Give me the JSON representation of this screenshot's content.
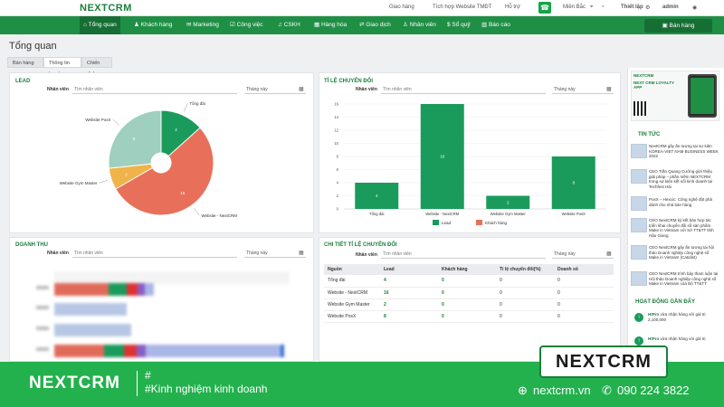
{
  "topbar": {
    "logo": "NEXTCRM",
    "links": [
      "Giao hàng",
      "Tích hợp Website TMĐT",
      "Hỗ trợ"
    ],
    "region": "Miền Bắc",
    "settings": "Thiết lập",
    "user": "admin"
  },
  "nav": {
    "items": [
      "Tổng quan",
      "Khách hàng",
      "Marketing",
      "Công việc",
      "CSKH",
      "Hàng hóa",
      "Giao dịch",
      "Nhân viên",
      "Sổ quỹ",
      "Báo cáo"
    ],
    "sell": "Bán hàng"
  },
  "page": {
    "title": "Tổng quan",
    "tabs": [
      "Bán hàng",
      "Thông tin Lead",
      "Chiến dịch"
    ]
  },
  "filters": {
    "staff_label": "Nhân viên",
    "staff_placeholder": "Tìm nhân viên",
    "period": "Tháng này"
  },
  "lead": {
    "title": "LEAD",
    "chart_data": {
      "type": "pie",
      "title": "LEAD",
      "labels": [
        "Tổng đài",
        "Website - NextCRM",
        "Website Gym Master",
        "Website PosX"
      ],
      "values": [
        4,
        16,
        2,
        8
      ],
      "slice_labels": [
        "4",
        "16",
        "2",
        "8"
      ],
      "colors": [
        "#1a9b5c",
        "#e8705a",
        "#f0b34a",
        "#9fcfbe"
      ]
    }
  },
  "conversion": {
    "title": "TỈ LỆ CHUYỂN ĐỔI",
    "chart_data": {
      "type": "bar",
      "title": "TỈ LỆ CHUYỂN ĐỔI",
      "categories": [
        "Tổng đài",
        "Website - NextCRM",
        "Website Gym Master",
        "Website PosX"
      ],
      "series": [
        {
          "name": "Lead",
          "values": [
            4,
            16,
            2,
            8
          ],
          "color": "#1a9b5c"
        },
        {
          "name": "Khách hàng",
          "values": [
            0,
            0,
            0,
            0
          ],
          "color": "#e8705a"
        }
      ],
      "ylim": [
        0,
        16
      ],
      "yticks": [
        "0",
        "2",
        "4",
        "6",
        "8",
        "10",
        "12",
        "14",
        "16"
      ],
      "bar_labels": [
        "4",
        "16",
        "2",
        "8"
      ]
    }
  },
  "revenue": {
    "title": "DOANH THU"
  },
  "detail": {
    "title": "CHI TIẾT TỈ LỆ CHUYỂN ĐỔI",
    "headers": [
      "Nguồn",
      "Lead",
      "Khách hàng",
      "Tỉ lệ chuyển đổi(%)",
      "Doanh số"
    ],
    "rows": [
      [
        "Tổng đài",
        "4",
        "0",
        "0",
        "0"
      ],
      [
        "Website - NextCRM",
        "16",
        "0",
        "0",
        "0"
      ],
      [
        "Website Gym Master",
        "2",
        "0",
        "0",
        "0"
      ],
      [
        "Website PosX",
        "8",
        "0",
        "0",
        "0"
      ]
    ]
  },
  "right": {
    "ad_brand": "NEXTCRM",
    "ad_title": "NEXT CRM LOYALTY APP",
    "news_title": "TIN TỨC",
    "news": [
      "NextCRM gây ấn tượng tại sự kiện KOREA-VIET NAM BUSINESS WEEK 2022",
      "CEO Trần Quang Cường giới thiệu giải pháp – phần mềm NEXTCRM trong sự kiện kết nối kinh doanh tại Techfest Hải",
      "PosX – Hexcic: Công nghệ đột phá dành cho nhà bán hàng",
      "CEO NextCRM ký kết bản hợp tác triển khai chuyển đổi số sản phẩm Make in Vietnam với Sở TT&TT tỉnh Hậu Giang",
      "CEO NextCRM gây ấn tượng tại hội thảo Doanh nghiệp công nghệ số Make in Vietnam (Catalist)",
      "CEO NextCRM trình bày tham luận tại Hội thảo Doanh nghiệp công nghệ số Make in Vietnam của Bộ TT&TT"
    ],
    "activity_title": "HOẠT ĐỘNG GẦN ĐÂY",
    "activities": [
      {
        "user": "HtPro",
        "text": "vừa nhận hàng với giá trị",
        "amount": "2,100,000"
      },
      {
        "user": "HtPro",
        "text": "vừa nhận hàng với giá trị",
        "amount": ""
      }
    ]
  },
  "footer": {
    "brand": "NEXTCRM",
    "hash": "#",
    "tagline": "#Kinh nghiệm kinh doanh",
    "website": "nextcrm.vn",
    "phone": "090 224 3822",
    "badge": "NEXTCRM"
  }
}
